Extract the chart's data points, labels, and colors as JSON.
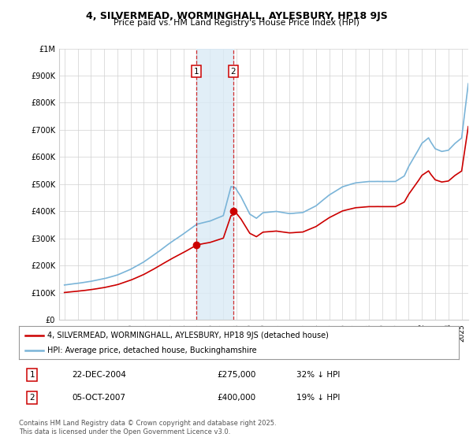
{
  "title": "4, SILVERMEAD, WORMINGHALL, AYLESBURY, HP18 9JS",
  "subtitle": "Price paid vs. HM Land Registry's House Price Index (HPI)",
  "legend_line1": "4, SILVERMEAD, WORMINGHALL, AYLESBURY, HP18 9JS (detached house)",
  "legend_line2": "HPI: Average price, detached house, Buckinghamshire",
  "footnote": "Contains HM Land Registry data © Crown copyright and database right 2025.\nThis data is licensed under the Open Government Licence v3.0.",
  "annotation1_label": "1",
  "annotation1_date": "22-DEC-2004",
  "annotation1_price": "£275,000",
  "annotation1_hpi": "32% ↓ HPI",
  "annotation2_label": "2",
  "annotation2_date": "05-OCT-2007",
  "annotation2_price": "£400,000",
  "annotation2_hpi": "19% ↓ HPI",
  "hpi_color": "#7ab4d8",
  "price_color": "#cc0000",
  "shade_color": "#daeaf5",
  "vline_color": "#cc0000",
  "ylim": [
    0,
    1000000
  ],
  "yticks": [
    0,
    100000,
    200000,
    300000,
    400000,
    500000,
    600000,
    700000,
    800000,
    900000,
    1000000
  ],
  "ytick_labels": [
    "£0",
    "£100K",
    "£200K",
    "£300K",
    "£400K",
    "£500K",
    "£600K",
    "£700K",
    "£800K",
    "£900K",
    "£1M"
  ],
  "sale1_x": 2004.97,
  "sale1_y": 275000,
  "sale2_x": 2007.75,
  "sale2_y": 400000,
  "xmin": 1995.0,
  "xmax": 2025.5
}
